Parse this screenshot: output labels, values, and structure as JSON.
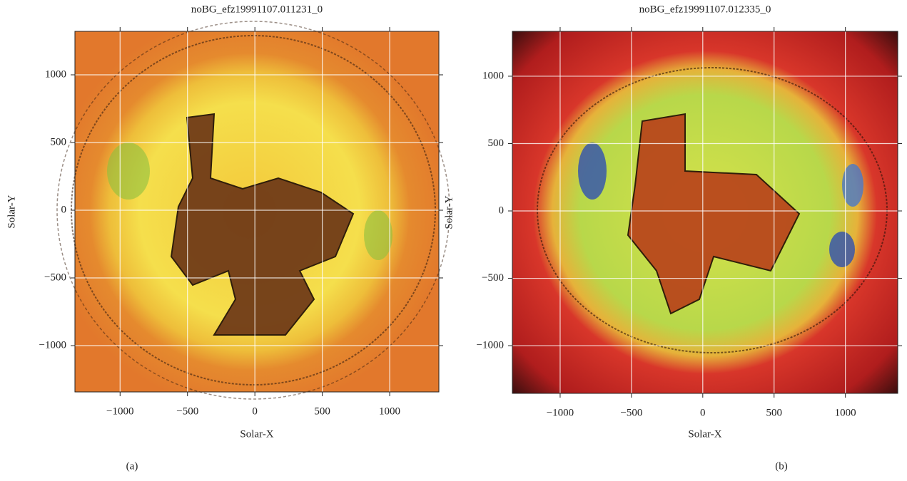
{
  "chart_data": [
    {
      "type": "image",
      "title": "noBG_efz19991107.011231_0",
      "xlabel": "Solar-X",
      "ylabel": "Solar-Y",
      "caption": "(a)",
      "xlim": [
        -1335,
        1365
      ],
      "ylim": [
        -1342,
        1321
      ],
      "xticks": [
        {
          "value": -1000,
          "label": "−1000"
        },
        {
          "value": -500,
          "label": "−500"
        },
        0,
        500,
        1000
      ],
      "yticks": [
        {
          "value": -1000,
          "label": "−1000"
        },
        {
          "value": -500,
          "label": "−500"
        },
        0,
        500,
        1000
      ],
      "grid": true,
      "colormap": "yellow-orange"
    },
    {
      "type": "image",
      "title": "noBG_efz19991107.012335_0",
      "xlabel": "Solar-X",
      "ylabel": "Solar-Y",
      "caption": "(b)",
      "xlim": [
        -1335,
        1367
      ],
      "ylim": [
        -1354,
        1333
      ],
      "xticks": [
        {
          "value": -1000,
          "label": "−1000"
        },
        {
          "value": -500,
          "label": "−500"
        },
        0,
        500,
        1000
      ],
      "yticks": [
        {
          "value": -1000,
          "label": "−1000"
        },
        {
          "value": -500,
          "label": "−500"
        },
        0,
        500,
        1000
      ],
      "grid": true,
      "colormap": "red-green-blue"
    }
  ]
}
